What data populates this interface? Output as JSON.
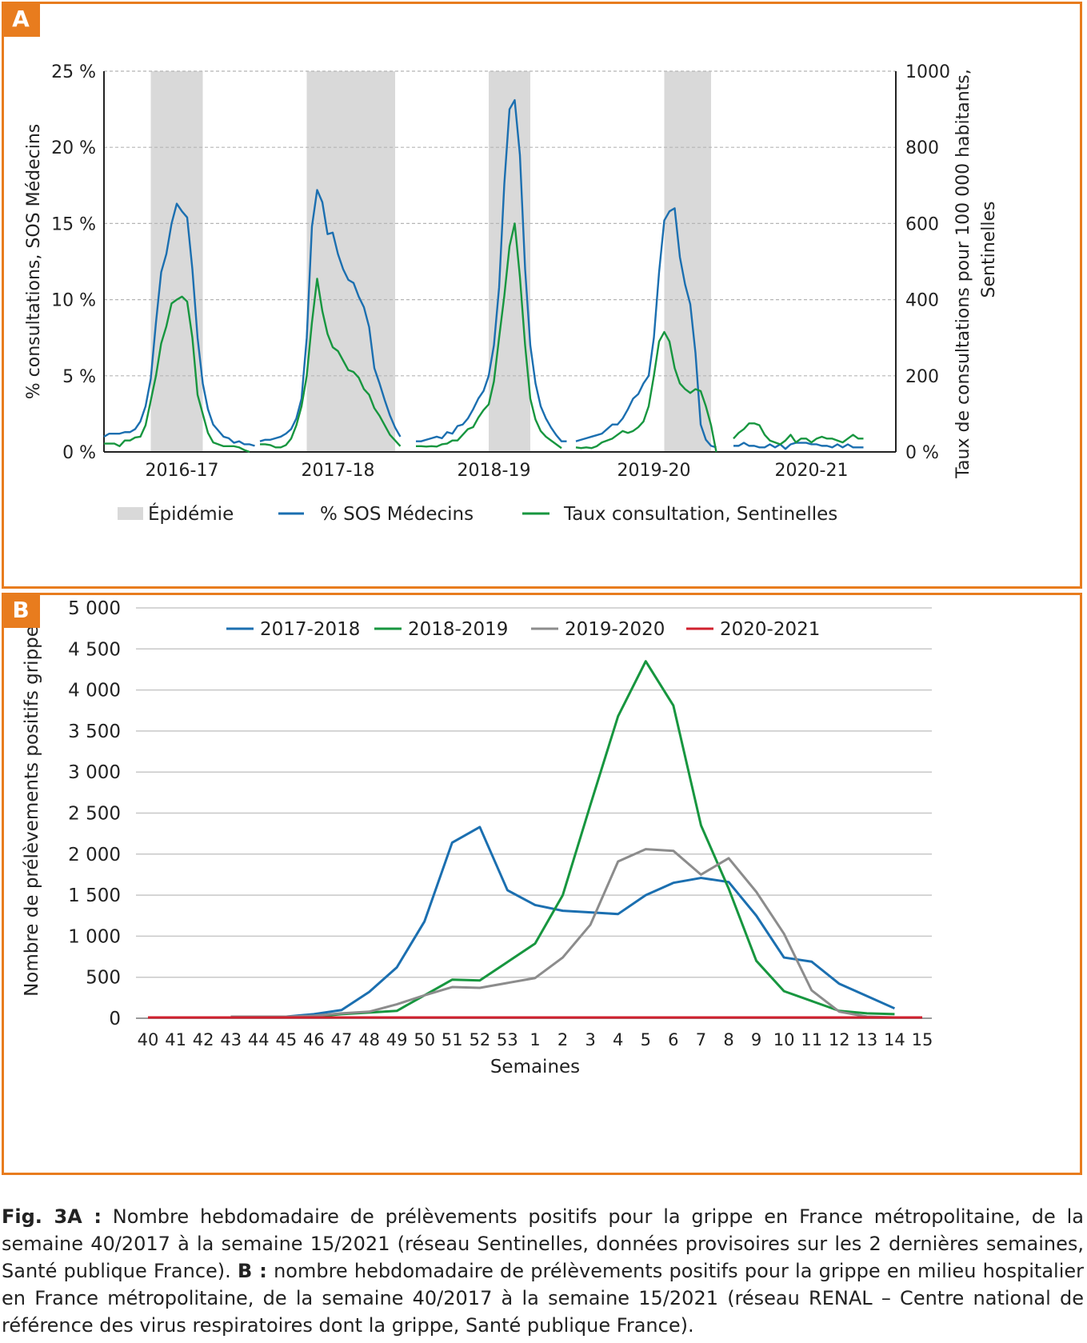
{
  "colors": {
    "border": "#e87c1e",
    "sos": "#1b6fb0",
    "sentinelles": "#17963f",
    "epidemic": "#d9d9d9",
    "s2017": "#1b6fb0",
    "s2018": "#17963f",
    "s2019": "#8c8c8c",
    "s2020": "#d0202e",
    "grid": "#c8c8c8"
  },
  "panels": {
    "a_label": "A",
    "b_label": "B"
  },
  "caption": {
    "a_label": "Fig. 3A :",
    "a_text": "Nombre hebdomadaire de prélèvements positifs pour la grippe en France métropolitaine, de la semaine 40/2017 à la semaine 15/2021 (réseau Sentinelles, données provisoires sur les 2 dernières semaines, Santé publique France).",
    "b_label": "B :",
    "b_text": "nombre hebdomadaire de prélèvements positifs pour la grippe en milieu hospitalier en France métropolitaine, de la semaine 40/2017 à la semaine 15/2021 (réseau RENAL – Centre national de référence des virus respiratoires dont la grippe, Santé publique France)."
  },
  "chart_data": [
    {
      "type": "line",
      "ylabel": "% consultations, SOS Médecins",
      "y2label_line1": "Taux de consultations pour 100 000 habitants,",
      "y2label_line2": "Sentinelles",
      "y_ticks": [
        "0 %",
        "5 %",
        "10 %",
        "15 %",
        "20 %",
        "25 %"
      ],
      "y2_ticks": [
        "0 %",
        "200",
        "400",
        "600",
        "800",
        "1000"
      ],
      "ylim": [
        0,
        25
      ],
      "y2lim": [
        0,
        1000
      ],
      "x_labels": [
        "2016-17",
        "2017-18",
        "2018-19",
        "2019-20",
        "2020-21"
      ],
      "grid": true,
      "legend": {
        "epidemic": "Épidémie",
        "sos": "% SOS Médecins",
        "sentinelles": "Taux consultation, Sentinelles"
      },
      "epidemic_periods": [
        {
          "season": "2016-17",
          "start_week": 9,
          "end_week": 19
        },
        {
          "season": "2017-18",
          "start_week": 9,
          "end_week": 26
        },
        {
          "season": "2018-19",
          "start_week": 14,
          "end_week": 22
        },
        {
          "season": "2019-20",
          "start_week": 17,
          "end_week": 26
        }
      ],
      "series": [
        {
          "name": "% SOS Médecins",
          "seasons": [
            [
              1.0,
              1.2,
              1.2,
              1.2,
              1.3,
              1.3,
              1.5,
              2.0,
              3.0,
              4.8,
              8.5,
              11.8,
              13.0,
              15.0,
              16.3,
              15.8,
              15.4,
              12.0,
              7.5,
              4.5,
              2.8,
              1.8,
              1.4,
              1.0,
              0.9,
              0.6,
              0.7,
              0.5,
              0.5,
              0.4
            ],
            [
              0.7,
              0.8,
              0.8,
              0.9,
              1.0,
              1.2,
              1.5,
              2.2,
              3.5,
              7.5,
              14.8,
              17.2,
              16.4,
              14.3,
              14.4,
              13.0,
              12.0,
              11.3,
              11.1,
              10.2,
              9.5,
              8.2,
              5.5,
              4.5,
              3.4,
              2.4,
              1.6,
              1.0
            ],
            [
              0.7,
              0.7,
              0.8,
              0.9,
              1.0,
              0.9,
              1.3,
              1.2,
              1.7,
              1.8,
              2.2,
              2.8,
              3.5,
              4.0,
              5.0,
              7.0,
              10.8,
              17.6,
              22.5,
              23.1,
              19.5,
              12.0,
              7.0,
              4.5,
              3.0,
              2.2,
              1.6,
              1.1,
              0.7,
              0.7
            ],
            [
              0.7,
              0.8,
              0.9,
              1.0,
              1.1,
              1.2,
              1.5,
              1.8,
              1.8,
              2.2,
              2.8,
              3.5,
              3.8,
              4.5,
              5.0,
              7.5,
              11.8,
              15.2,
              15.8,
              16.0,
              12.8,
              11.0,
              9.7,
              6.5,
              1.8,
              0.8,
              0.4,
              0.3
            ],
            [
              0.4,
              0.4,
              0.6,
              0.4,
              0.4,
              0.3,
              0.3,
              0.5,
              0.3,
              0.5,
              0.2,
              0.5,
              0.6,
              0.6,
              0.6,
              0.5,
              0.5,
              0.4,
              0.4,
              0.3,
              0.5,
              0.3,
              0.5,
              0.3,
              0.3,
              0.3
            ]
          ]
        },
        {
          "name": "Taux consultation, Sentinelles",
          "seasons": [
            [
              22,
              22,
              22,
              15,
              30,
              30,
              38,
              40,
              70,
              135,
              200,
              285,
              330,
              390,
              400,
              408,
              395,
              300,
              150,
              100,
              50,
              25,
              20,
              15,
              15,
              15,
              12,
              5,
              0
            ],
            [
              20,
              20,
              18,
              12,
              12,
              18,
              35,
              70,
              120,
              200,
              340,
              455,
              370,
              310,
              275,
              265,
              240,
              215,
              210,
              195,
              165,
              150,
              115,
              95,
              70,
              45,
              30,
              15
            ],
            [
              15,
              15,
              14,
              15,
              14,
              20,
              22,
              30,
              30,
              45,
              60,
              65,
              90,
              110,
              125,
              185,
              300,
              410,
              540,
              600,
              460,
              280,
              140,
              85,
              55,
              40,
              30,
              20,
              10
            ],
            [
              12,
              10,
              12,
              10,
              15,
              25,
              30,
              35,
              45,
              55,
              50,
              55,
              65,
              80,
              120,
              200,
              290,
              315,
              290,
              220,
              180,
              165,
              155,
              165,
              160,
              120,
              70,
              0
            ],
            [
              35,
              50,
              60,
              75,
              75,
              70,
              45,
              30,
              25,
              20,
              30,
              45,
              25,
              35,
              35,
              25,
              35,
              40,
              35,
              35,
              30,
              25,
              35,
              45,
              35,
              35
            ]
          ]
        }
      ]
    },
    {
      "type": "line",
      "ylabel": "Nombre de prélèvements positifs grippe",
      "xlabel": "Semaines",
      "ylim": [
        0,
        5000
      ],
      "y_ticks": [
        "0",
        "500",
        "1 000",
        "1 500",
        "2 000",
        "2 500",
        "3 000",
        "3 500",
        "4 000",
        "4 500",
        "5 000"
      ],
      "categories": [
        "40",
        "41",
        "42",
        "43",
        "44",
        "45",
        "46",
        "47",
        "48",
        "49",
        "50",
        "51",
        "52",
        "53",
        "1",
        "2",
        "3",
        "4",
        "5",
        "6",
        "7",
        "8",
        "9",
        "10",
        "11",
        "12",
        "13",
        "14",
        "15"
      ],
      "legend_position": "top",
      "grid": true,
      "series": [
        {
          "name": "2017-2018",
          "values": [
            null,
            null,
            null,
            20,
            20,
            20,
            50,
            100,
            320,
            620,
            1180,
            2140,
            2330,
            1560,
            1380,
            1310,
            1290,
            1270,
            1500,
            1650,
            1710,
            1660,
            1250,
            740,
            690,
            420,
            270,
            120,
            null
          ]
        },
        {
          "name": "2018-2019",
          "values": [
            null,
            null,
            null,
            20,
            20,
            20,
            20,
            50,
            70,
            90,
            280,
            470,
            460,
            null,
            910,
            1500,
            2600,
            3680,
            4350,
            3810,
            2350,
            1580,
            700,
            330,
            210,
            90,
            60,
            50,
            null
          ]
        },
        {
          "name": "2019-2020",
          "values": [
            null,
            null,
            null,
            20,
            20,
            20,
            30,
            60,
            80,
            170,
            280,
            380,
            370,
            430,
            490,
            740,
            1140,
            1910,
            2060,
            2040,
            1750,
            1950,
            1540,
            1030,
            340,
            80,
            20,
            10,
            null
          ]
        },
        {
          "name": "2020-2021",
          "values": [
            10,
            10,
            10,
            10,
            10,
            10,
            10,
            10,
            10,
            10,
            10,
            10,
            10,
            10,
            10,
            10,
            10,
            10,
            10,
            10,
            10,
            10,
            10,
            10,
            10,
            10,
            10,
            10,
            10
          ]
        }
      ]
    }
  ]
}
